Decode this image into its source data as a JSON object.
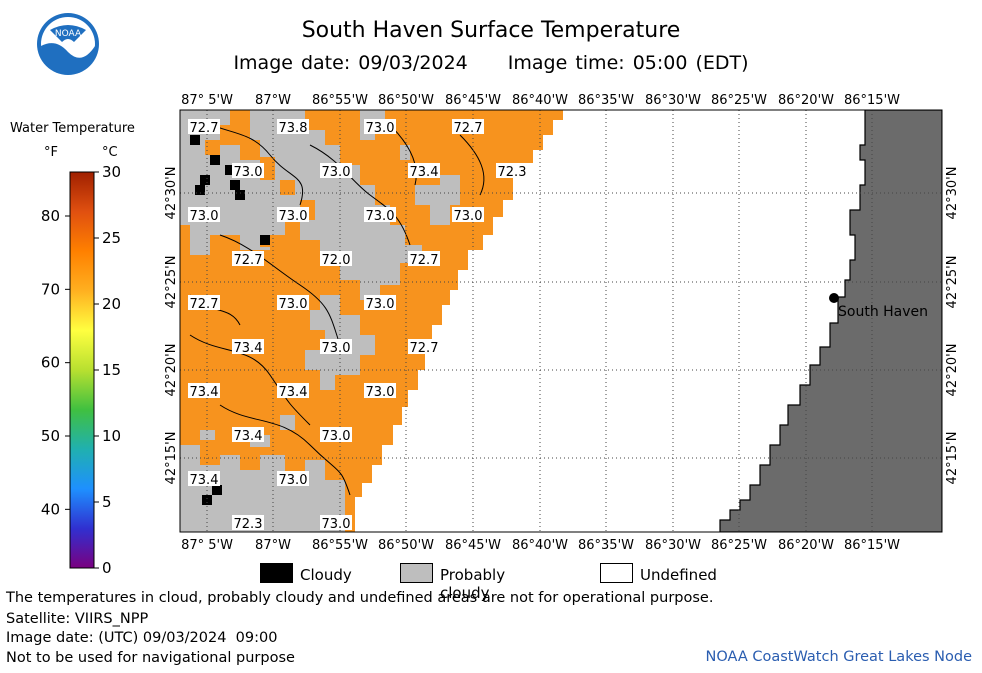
{
  "header": {
    "title": "South Haven Surface Temperature",
    "image_date_label": "Image date: 09/03/2024",
    "image_time_label": "Image time: 05:00 (EDT)"
  },
  "logo": {
    "text": "NOAA",
    "icon": "noaa-logo-icon"
  },
  "color_scale": {
    "title": "Water Temperature",
    "unit_f": "°F",
    "unit_c": "°C",
    "f_ticks": [
      "40",
      "50",
      "60",
      "70",
      "80"
    ],
    "c_ticks": [
      "0",
      "5",
      "10",
      "15",
      "20",
      "25",
      "30"
    ],
    "f_values": [
      40,
      50,
      60,
      70,
      80
    ],
    "c_values": [
      0,
      5,
      10,
      15,
      20,
      25,
      30
    ],
    "colors": [
      "#7a0080",
      "#3030d0",
      "#1e90ff",
      "#20b0b0",
      "#40c040",
      "#b8e030",
      "#ffff40",
      "#ffb020",
      "#ff8000",
      "#e05010",
      "#a02000"
    ]
  },
  "map": {
    "lon_labels": [
      "87° 5'W",
      "87°W",
      "86°55'W",
      "86°50'W",
      "86°45'W",
      "86°40'W",
      "86°35'W",
      "86°30'W",
      "86°25'W",
      "86°20'W",
      "86°15'W"
    ],
    "lat_labels": [
      "42°30'N",
      "42°25'N",
      "42°20'N",
      "42°15'N"
    ],
    "city": "South Haven",
    "water_color": "#f7931e",
    "cloudy_color": "#000000",
    "probably_cloudy_color": "#bebebe",
    "land_color": "#6b6b6b",
    "temperature_labels": [
      "72.7",
      "73.8",
      "73.0",
      "72.7",
      "73.0",
      "73.0",
      "73.4",
      "72.3",
      "73.0",
      "73.0",
      "73.0",
      "73.0",
      "72.7",
      "72.0",
      "72.7",
      "72.7",
      "73.0",
      "73.0",
      "73.4",
      "73.0",
      "72.7",
      "73.4",
      "73.4",
      "73.0",
      "73.4",
      "73.0",
      "73.4",
      "73.0",
      "72.3",
      "73.0"
    ]
  },
  "legend": {
    "cloudy": "Cloudy",
    "probably_cloudy": "Probably cloudy",
    "undefined": "Undefined"
  },
  "footer": {
    "note": "The temperatures in cloud, probably cloudy and undefined areas are not for operational purpose.",
    "satellite": "Satellite: VIIRS_NPP",
    "utc_date": "Image date: (UTC) 09/03/2024  09:00",
    "nav_warning": "Not to be used for navigational purpose",
    "credit": "NOAA CoastWatch Great Lakes Node"
  }
}
